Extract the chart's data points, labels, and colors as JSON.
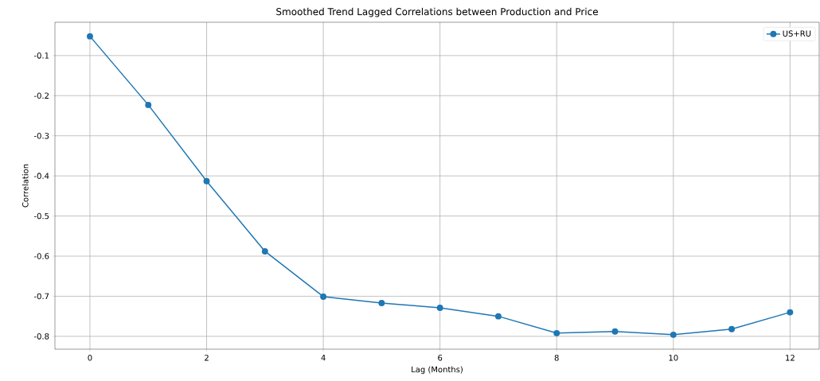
{
  "chart_data": {
    "type": "line",
    "title": "Smoothed Trend Lagged Correlations between Production and Price",
    "xlabel": "Lag (Months)",
    "ylabel": "Correlation",
    "x": [
      0,
      1,
      2,
      3,
      4,
      5,
      6,
      7,
      8,
      9,
      10,
      11,
      12
    ],
    "series": [
      {
        "name": "US+RU",
        "color": "#1f77b4",
        "values": [
          -0.052,
          -0.223,
          -0.413,
          -0.588,
          -0.701,
          -0.717,
          -0.729,
          -0.75,
          -0.792,
          -0.788,
          -0.796,
          -0.782,
          -0.74
        ]
      }
    ],
    "xlim": [
      -0.6,
      12.5
    ],
    "ylim": [
      -0.832,
      -0.017
    ],
    "xticks": [
      0,
      2,
      4,
      6,
      8,
      10,
      12
    ],
    "yticks": [
      -0.8,
      -0.7,
      -0.6,
      -0.5,
      -0.4,
      -0.3,
      -0.2,
      -0.1
    ],
    "grid": true,
    "legend": "top right",
    "marker": "circle",
    "line_style": "solid"
  }
}
